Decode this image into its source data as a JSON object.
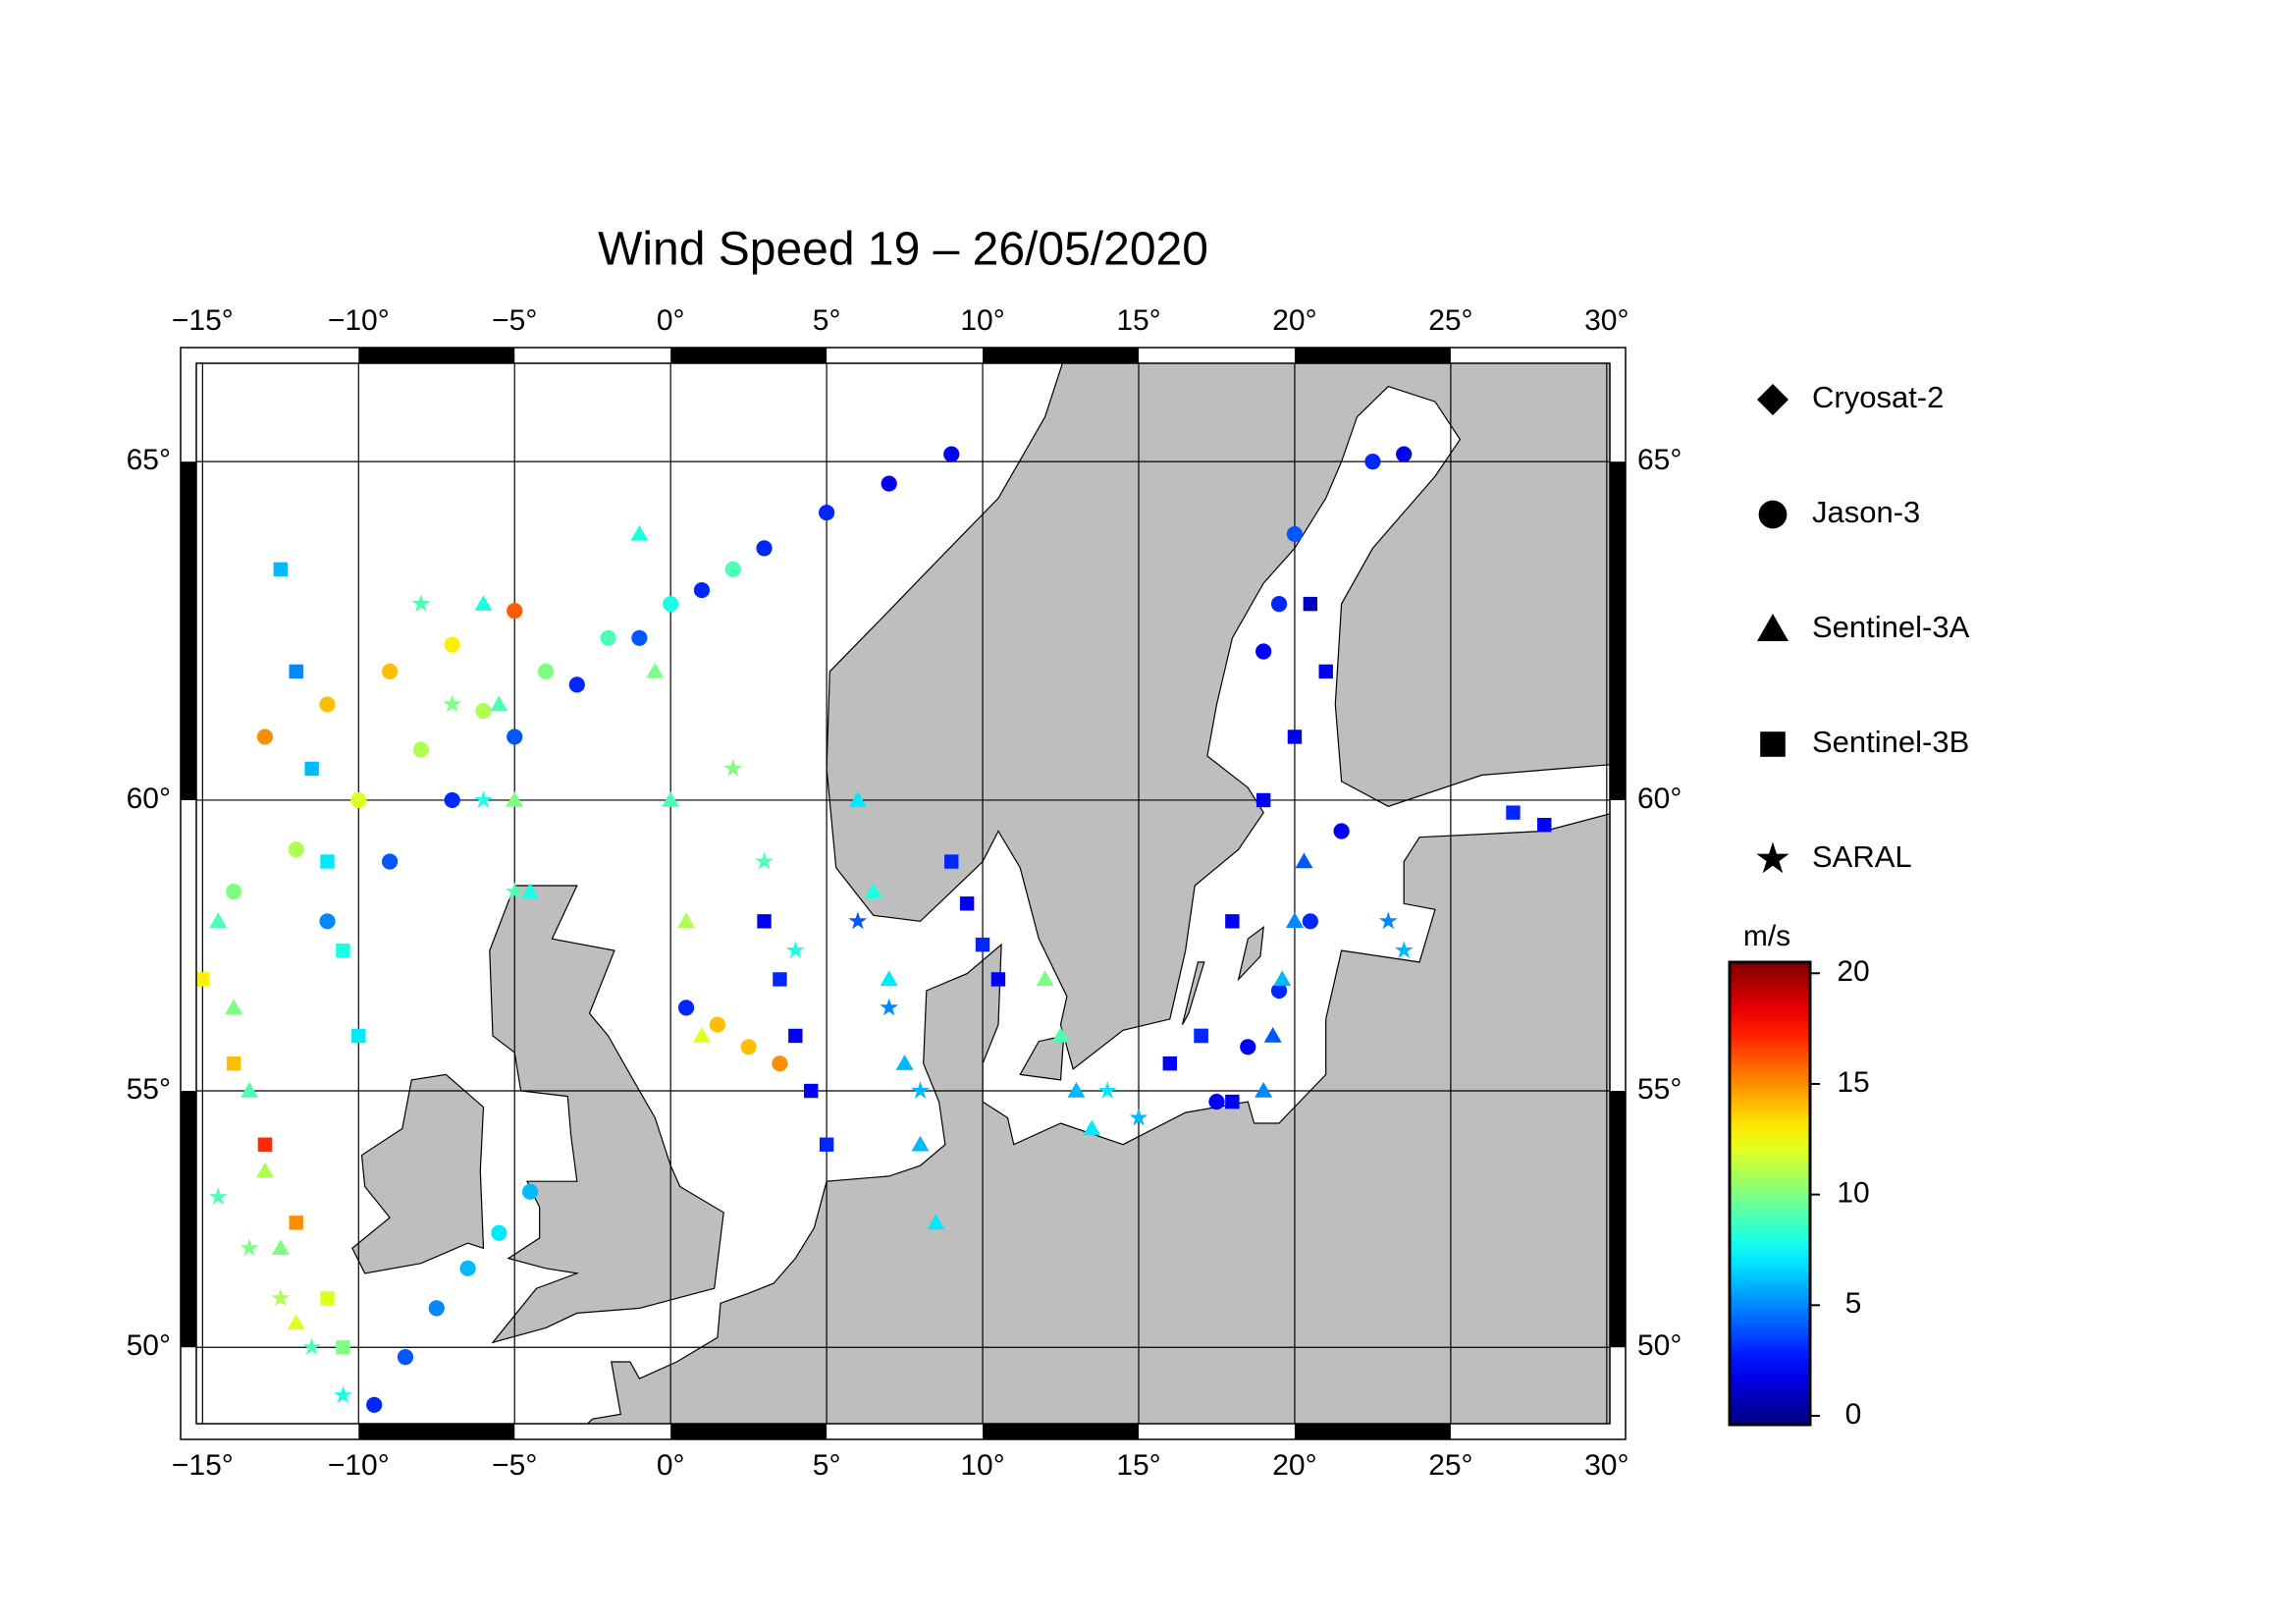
{
  "chart_data": {
    "type": "scatter",
    "title": "Wind Speed 19 – 26/05/2020",
    "projection": "mercator",
    "xlim": [
      -15.2,
      30.1
    ],
    "ylim": [
      48.4,
      66.3
    ],
    "xticks": [
      {
        "value": -15,
        "label": "−15°"
      },
      {
        "value": -10,
        "label": "−10°"
      },
      {
        "value": -5,
        "label": "−5°"
      },
      {
        "value": 0,
        "label": "0°"
      },
      {
        "value": 5,
        "label": "5°"
      },
      {
        "value": 10,
        "label": "10°"
      },
      {
        "value": 15,
        "label": "15°"
      },
      {
        "value": 20,
        "label": "20°"
      },
      {
        "value": 25,
        "label": "25°"
      },
      {
        "value": 30,
        "label": "30°"
      }
    ],
    "yticks": [
      {
        "value": 50,
        "label": "50°"
      },
      {
        "value": 55,
        "label": "55°"
      },
      {
        "value": 60,
        "label": "60°"
      },
      {
        "value": 65,
        "label": "65°"
      }
    ],
    "grid": true,
    "colorbar": {
      "label": "m/s",
      "colormap": "jet",
      "lim": [
        -0.4,
        20.5
      ],
      "ticks": [
        0,
        5,
        10,
        15,
        20
      ]
    },
    "series": [
      {
        "name": "Cryosat-2",
        "marker": "diamond",
        "lon": [],
        "lat": [],
        "values": []
      },
      {
        "name": "Jason-3",
        "marker": "circle",
        "lon": [
          -13,
          -11,
          -9,
          -7,
          -5,
          -11,
          -9,
          -7,
          -5,
          -3,
          -1,
          1,
          3,
          5,
          7,
          9,
          2,
          0,
          -2,
          -4,
          -6,
          -8,
          -10,
          -12,
          -14,
          -9.5,
          -8.5,
          -7.5,
          -6.5,
          -5.5,
          -4.5,
          17.5,
          18.5,
          19.5,
          20.5,
          21.5,
          19,
          19.5,
          20,
          22.5,
          23.5,
          0.5,
          1.5,
          2.5,
          3.5
        ],
        "lat": [
          61,
          61.5,
          62,
          62.4,
          62.9,
          58,
          59,
          60,
          61,
          61.8,
          62.5,
          63.2,
          63.8,
          64.3,
          64.7,
          65.1,
          63.5,
          63,
          62.5,
          62,
          61.4,
          60.8,
          60,
          59.2,
          58.5,
          48.8,
          49.8,
          50.8,
          51.6,
          52.3,
          53.1,
          54.8,
          55.8,
          56.8,
          58,
          59.5,
          62.3,
          63,
          64,
          65,
          65.1,
          56.5,
          56.2,
          55.8,
          55.5
        ],
        "values": [
          15,
          14,
          14,
          13,
          16,
          5,
          4,
          3,
          4,
          3,
          4,
          3,
          3,
          3,
          2,
          2,
          9,
          8,
          9,
          10,
          11,
          11,
          12,
          11,
          10,
          3,
          4,
          5,
          6,
          7,
          6,
          2,
          2,
          3,
          3,
          2,
          2,
          3,
          4,
          3,
          2,
          3,
          14,
          14,
          15
        ]
      },
      {
        "name": "Sentinel-3A",
        "marker": "triangle",
        "lon": [
          -14.5,
          -14,
          -13.5,
          -13,
          -12.5,
          -12,
          6,
          6.5,
          7,
          7.5,
          8,
          8.5,
          -1,
          -0.5,
          0,
          0.5,
          1,
          19,
          19.3,
          19.6,
          20,
          20.3,
          12,
          12.5,
          13,
          13.5,
          -6,
          -5.5,
          -5,
          -4.5
        ],
        "lat": [
          58,
          56.5,
          55,
          53.5,
          52,
          50.5,
          60,
          58.5,
          57,
          55.5,
          54,
          52.5,
          64,
          62,
          60,
          58,
          56,
          55,
          56,
          57,
          58,
          59,
          57,
          56,
          55,
          54.3,
          63,
          61.5,
          60,
          58.5
        ],
        "values": [
          9,
          10,
          9,
          11,
          10,
          12,
          7,
          8,
          7,
          6,
          6,
          7,
          8,
          10,
          9,
          11,
          12,
          5,
          4,
          6,
          5,
          4,
          10,
          9,
          6,
          7,
          8,
          9,
          10,
          8
        ]
      },
      {
        "name": "Sentinel-3B",
        "marker": "square",
        "lon": [
          -15,
          -14,
          -13,
          -12,
          -11,
          -10.5,
          19,
          20,
          21,
          20.5,
          18,
          17,
          -12.5,
          -12,
          -11.5,
          -11,
          -10.5,
          -10,
          9,
          9.5,
          10,
          10.5,
          3,
          3.5,
          4,
          4.5,
          5,
          16,
          17,
          18,
          27,
          28
        ],
        "lat": [
          57,
          55.5,
          54,
          52.5,
          51,
          50,
          60,
          61,
          62,
          63,
          58,
          56,
          63.5,
          62,
          60.5,
          59,
          57.5,
          56,
          59,
          58.3,
          57.6,
          57,
          58,
          57,
          56,
          55,
          54,
          55.5,
          56,
          54.8,
          59.8,
          59.6
        ],
        "values": [
          13,
          14,
          17,
          15,
          12,
          10,
          2,
          2,
          2,
          1,
          2,
          2,
          6,
          5,
          6,
          7,
          8,
          7,
          3,
          2,
          3,
          2,
          2,
          3,
          2,
          2,
          3,
          2,
          3,
          2,
          3,
          2
        ]
      },
      {
        "name": "SARAL",
        "marker": "star",
        "lon": [
          -14.5,
          -13.5,
          -12.5,
          -11.5,
          -10.5,
          6,
          7,
          8,
          14,
          15,
          -8,
          -7,
          -6,
          -5,
          2,
          3,
          4,
          23,
          23.5
        ],
        "lat": [
          53,
          52,
          51,
          50,
          49,
          58,
          56.5,
          55,
          55,
          54.5,
          63,
          61.5,
          60,
          58.5,
          60.5,
          59,
          57.5,
          58,
          57.5
        ],
        "values": [
          9,
          10,
          11,
          9,
          8,
          4,
          5,
          6,
          7,
          6,
          9,
          10,
          8,
          9,
          10,
          9,
          8,
          5,
          6
        ]
      }
    ]
  }
}
